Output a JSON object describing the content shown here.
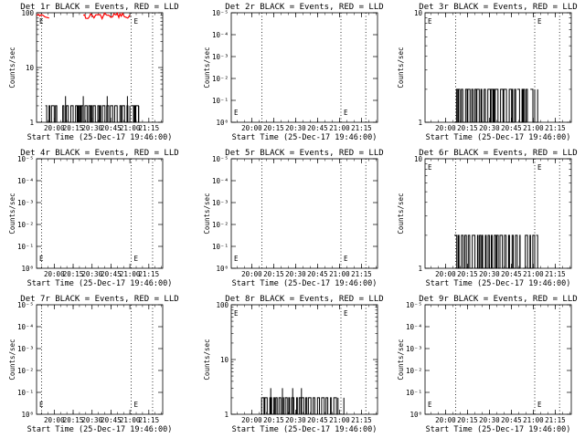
{
  "chart_data": [
    {
      "type": "line",
      "title": "Det 1r BLACK = Events, RED = LLD",
      "xlabel": "Start Time (25-Dec-17 19:46:00)",
      "ylabel": "Counts/sec",
      "yscale": "log",
      "y_ticks": [
        "1",
        "10",
        "100"
      ],
      "y_tick_values": [
        1,
        10,
        100
      ],
      "ylim": [
        1,
        100
      ],
      "x_ticks": [
        "20:00",
        "20:15",
        "20:30",
        "20:45",
        "21:00",
        "21:15"
      ],
      "x_tick_values": [
        14,
        29,
        44,
        59,
        74,
        89
      ],
      "xlim": [
        0,
        100
      ],
      "marker_label": "E",
      "markers": [
        {
          "t": 0,
          "label": "E"
        },
        {
          "t": 75,
          "label": "E"
        }
      ],
      "dotted_lines": [
        4,
        75,
        92
      ],
      "series": [
        {
          "name": "Events",
          "color": "#000000",
          "segments": [
            [
              7,
              16
            ],
            [
              20,
              74
            ],
            [
              75,
              81
            ]
          ],
          "levels": [
            1,
            2
          ],
          "spikes": [
            [
              23,
              3
            ],
            [
              37,
              3
            ],
            [
              56,
              3
            ],
            [
              72,
              3
            ]
          ]
        },
        {
          "name": "LLD",
          "color": "#ff0000",
          "segments": [
            [
              0,
              10
            ],
            [
              37,
              74
            ]
          ],
          "levels": [
            80,
            100
          ],
          "spikes": []
        }
      ]
    },
    {
      "type": "line",
      "title": "Det 2r BLACK = Events, RED = LLD",
      "xlabel": "Start Time (25-Dec-17 19:46:00)",
      "ylabel": "Counts/sec",
      "yscale": "log",
      "y_ticks": [
        "10⁰",
        "10⁻¹",
        "10⁻²",
        "10⁻³",
        "10⁻⁴",
        "10⁻⁵"
      ],
      "y_tick_values": [
        1,
        1.2,
        1.4,
        1.6,
        1.8,
        2
      ],
      "ylim": [
        1,
        2
      ],
      "x_ticks": [
        "20:00",
        "20:15",
        "20:30",
        "20:45",
        "21:00",
        "21:15"
      ],
      "x_tick_values": [
        14,
        29,
        44,
        59,
        74,
        89
      ],
      "xlim": [
        0,
        100
      ],
      "marker_label": "E",
      "markers": [
        {
          "t": 0,
          "label": "E"
        },
        {
          "t": 75,
          "label": "E"
        }
      ],
      "dotted_lines": [
        21,
        75,
        92
      ],
      "series": []
    },
    {
      "type": "line",
      "title": "Det 3r BLACK = Events, RED = LLD",
      "xlabel": "Start Time (25-Dec-17 19:46:00)",
      "ylabel": "Counts/sec",
      "yscale": "log",
      "y_ticks": [
        "1",
        "10"
      ],
      "y_tick_values": [
        1,
        10
      ],
      "ylim": [
        1,
        10
      ],
      "x_ticks": [
        "20:00",
        "20:15",
        "20:30",
        "20:45",
        "21:00",
        "21:15"
      ],
      "x_tick_values": [
        14,
        29,
        44,
        59,
        74,
        89
      ],
      "xlim": [
        0,
        100
      ],
      "marker_label": "E",
      "markers": [
        {
          "t": 0,
          "label": "E"
        },
        {
          "t": 75,
          "label": "E"
        }
      ],
      "dotted_lines": [
        21,
        75,
        92
      ],
      "series": [
        {
          "name": "Events",
          "color": "#000000",
          "segments": [
            [
              20,
              62
            ],
            [
              63,
              70
            ],
            [
              72,
              75
            ],
            [
              76,
              77
            ]
          ],
          "levels": [
            1,
            2
          ],
          "spikes": []
        }
      ]
    },
    {
      "type": "line",
      "title": "Det 4r BLACK = Events, RED = LLD",
      "xlabel": "Start Time (25-Dec-17 19:46:00)",
      "ylabel": "Counts/sec",
      "yscale": "log",
      "y_ticks": [
        "10⁰",
        "10⁻¹",
        "10⁻²",
        "10⁻³",
        "10⁻⁴",
        "10⁻⁵"
      ],
      "y_tick_values": [
        1,
        1.2,
        1.4,
        1.6,
        1.8,
        2
      ],
      "ylim": [
        1,
        2
      ],
      "x_ticks": [
        "20:00",
        "20:15",
        "20:30",
        "20:45",
        "21:00",
        "21:15"
      ],
      "x_tick_values": [
        14,
        29,
        44,
        59,
        74,
        89
      ],
      "xlim": [
        0,
        100
      ],
      "marker_label": "E",
      "markers": [
        {
          "t": 0,
          "label": "E"
        },
        {
          "t": 75,
          "label": "E"
        }
      ],
      "dotted_lines": [
        4,
        75,
        92
      ],
      "series": []
    },
    {
      "type": "line",
      "title": "Det 5r BLACK = Events, RED = LLD",
      "xlabel": "Start Time (25-Dec-17 19:46:00)",
      "ylabel": "Counts/sec",
      "yscale": "log",
      "y_ticks": [
        "10⁰",
        "10⁻¹",
        "10⁻²",
        "10⁻³",
        "10⁻⁴",
        "10⁻⁵"
      ],
      "y_tick_values": [
        1,
        1.2,
        1.4,
        1.6,
        1.8,
        2
      ],
      "ylim": [
        1,
        2
      ],
      "x_ticks": [
        "20:00",
        "20:15",
        "20:30",
        "20:45",
        "21:00",
        "21:15"
      ],
      "x_tick_values": [
        14,
        29,
        44,
        59,
        74,
        89
      ],
      "xlim": [
        0,
        100
      ],
      "marker_label": "E",
      "markers": [
        {
          "t": 0,
          "label": "E"
        },
        {
          "t": 75,
          "label": "E"
        }
      ],
      "dotted_lines": [
        21,
        75,
        92
      ],
      "series": []
    },
    {
      "type": "line",
      "title": "Det 6r BLACK = Events, RED = LLD",
      "xlabel": "Start Time (25-Dec-17 19:46:00)",
      "ylabel": "Counts/sec",
      "yscale": "log",
      "y_ticks": [
        "1",
        "10"
      ],
      "y_tick_values": [
        1,
        10
      ],
      "ylim": [
        1,
        10
      ],
      "x_ticks": [
        "20:00",
        "20:15",
        "20:30",
        "20:45",
        "21:00",
        "21:15"
      ],
      "x_tick_values": [
        14,
        29,
        44,
        59,
        74,
        89
      ],
      "xlim": [
        0,
        100
      ],
      "marker_label": "E",
      "markers": [
        {
          "t": 0,
          "label": "E"
        },
        {
          "t": 75,
          "label": "E"
        }
      ],
      "dotted_lines": [
        21,
        75,
        92
      ],
      "series": [
        {
          "name": "Events",
          "color": "#000000",
          "segments": [
            [
              20,
              65
            ],
            [
              67,
              75
            ],
            [
              76,
              77
            ]
          ],
          "levels": [
            1,
            2
          ],
          "spikes": []
        }
      ]
    },
    {
      "type": "line",
      "title": "Det 7r BLACK = Events, RED = LLD",
      "xlabel": "Start Time (25-Dec-17 19:46:00)",
      "ylabel": "Counts/sec",
      "yscale": "log",
      "y_ticks": [
        "10⁰",
        "10⁻¹",
        "10⁻²",
        "10⁻³",
        "10⁻⁴",
        "10⁻⁵"
      ],
      "y_tick_values": [
        1,
        1.2,
        1.4,
        1.6,
        1.8,
        2
      ],
      "ylim": [
        1,
        2
      ],
      "x_ticks": [
        "20:00",
        "20:15",
        "20:30",
        "20:45",
        "21:00",
        "21:15"
      ],
      "x_tick_values": [
        14,
        29,
        44,
        59,
        74,
        89
      ],
      "xlim": [
        0,
        100
      ],
      "marker_label": "E",
      "markers": [
        {
          "t": 0,
          "label": "E"
        },
        {
          "t": 75,
          "label": "E"
        }
      ],
      "dotted_lines": [
        4,
        75,
        92
      ],
      "series": []
    },
    {
      "type": "line",
      "title": "Det 8r BLACK = Events, RED = LLD",
      "xlabel": "Start Time (25-Dec-17 19:46:00)",
      "ylabel": "Counts/sec",
      "yscale": "log",
      "y_ticks": [
        "1",
        "10",
        "100"
      ],
      "y_tick_values": [
        1,
        10,
        100
      ],
      "ylim": [
        1,
        100
      ],
      "x_ticks": [
        "20:00",
        "20:15",
        "20:30",
        "20:45",
        "21:00",
        "21:15"
      ],
      "x_tick_values": [
        14,
        29,
        44,
        59,
        74,
        89
      ],
      "xlim": [
        0,
        100
      ],
      "marker_label": "E",
      "markers": [
        {
          "t": 0,
          "label": "E"
        },
        {
          "t": 75,
          "label": "E"
        }
      ],
      "dotted_lines": [
        21,
        75,
        92
      ],
      "series": [
        {
          "name": "Events",
          "color": "#000000",
          "segments": [
            [
              20,
              66
            ],
            [
              67,
              73
            ],
            [
              76,
              77
            ]
          ],
          "levels": [
            1,
            2
          ],
          "spikes": [
            [
              27,
              3
            ],
            [
              35,
              3
            ],
            [
              42,
              3
            ],
            [
              48,
              3
            ]
          ]
        }
      ]
    },
    {
      "type": "line",
      "title": "Det 9r BLACK = Events, RED = LLD",
      "xlabel": "Start Time (25-Dec-17 19:46:00)",
      "ylabel": "Counts/sec",
      "yscale": "log",
      "y_ticks": [
        "10⁰",
        "10⁻¹",
        "10⁻²",
        "10⁻³",
        "10⁻⁴",
        "10⁻⁵"
      ],
      "y_tick_values": [
        1,
        1.2,
        1.4,
        1.6,
        1.8,
        2
      ],
      "ylim": [
        1,
        2
      ],
      "x_ticks": [
        "20:00",
        "20:15",
        "20:30",
        "20:45",
        "21:00",
        "21:15"
      ],
      "x_tick_values": [
        14,
        29,
        44,
        59,
        74,
        89
      ],
      "xlim": [
        0,
        100
      ],
      "marker_label": "E",
      "markers": [
        {
          "t": 0,
          "label": "E"
        },
        {
          "t": 75,
          "label": "E"
        }
      ],
      "dotted_lines": [
        21,
        75,
        92
      ],
      "series": []
    }
  ]
}
